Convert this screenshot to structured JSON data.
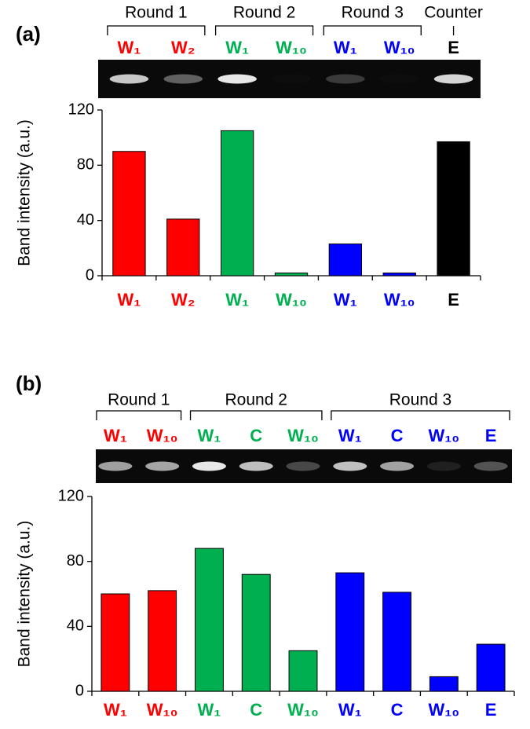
{
  "chart_data": [
    {
      "type": "bar",
      "panel": "(a)",
      "ylabel": "Band intensity (a.u.)",
      "categories": [
        "W₁",
        "W₂",
        "W₁",
        "W₁₀",
        "W₁",
        "W₁₀",
        "E"
      ],
      "groups": [
        "Round 1",
        "Round 1",
        "Round 2",
        "Round 2",
        "Round 3",
        "Round 3",
        "Counter"
      ],
      "values": [
        90,
        41,
        105,
        2,
        23,
        2,
        97
      ],
      "colors": [
        "#ff0000",
        "#ff0000",
        "#00b050",
        "#00b050",
        "#0000ff",
        "#0000ff",
        "#000000"
      ],
      "ylim": [
        0,
        120
      ],
      "yticks": [
        0,
        40,
        80,
        120
      ]
    },
    {
      "type": "bar",
      "panel": "(b)",
      "ylabel": "Band intensity (a.u.)",
      "categories": [
        "W₁",
        "W₁₀",
        "W₁",
        "C",
        "W₁₀",
        "W₁",
        "C",
        "W₁₀",
        "E"
      ],
      "groups": [
        "Round 1",
        "Round 1",
        "Round 2",
        "Round 2",
        "Round 2",
        "Round 3",
        "Round 3",
        "Round 3",
        "Round 3"
      ],
      "values": [
        60,
        62,
        88,
        72,
        25,
        73,
        61,
        9,
        29
      ],
      "colors": [
        "#ff0000",
        "#ff0000",
        "#00b050",
        "#00b050",
        "#00b050",
        "#0000ff",
        "#0000ff",
        "#0000ff",
        "#0000ff"
      ],
      "ylim": [
        0,
        120
      ],
      "yticks": [
        0,
        40,
        80,
        120
      ]
    }
  ]
}
